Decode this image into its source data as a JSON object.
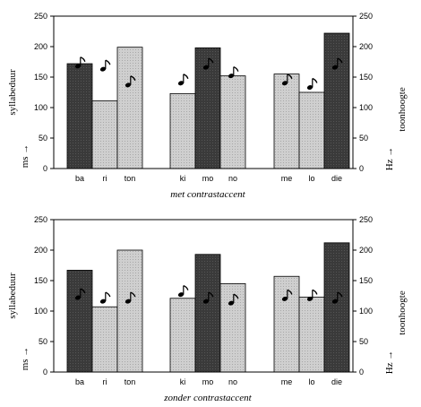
{
  "chart_data": [
    {
      "type": "bar",
      "title": "met contrastaccent",
      "categories": [
        "ba",
        "ri",
        "ton",
        "ki",
        "mo",
        "no",
        "me",
        "lo",
        "die"
      ],
      "groups": [
        [
          "ba",
          "ri",
          "ton"
        ],
        [
          "ki",
          "mo",
          "no"
        ],
        [
          "me",
          "lo",
          "die"
        ]
      ],
      "values": [
        172,
        111,
        199,
        123,
        198,
        152,
        155,
        125,
        222
      ],
      "shade": [
        "dark",
        "light",
        "light",
        "light",
        "dark",
        "light",
        "light",
        "light",
        "dark"
      ],
      "pitch": [
        168,
        163,
        137,
        140,
        166,
        152,
        140,
        133,
        166
      ],
      "ylabel_left": "syllabeduur",
      "yunit_left": "ms →",
      "ylabel_right": "toonhoogte",
      "yunit_right": "Hz →",
      "ylim": [
        0,
        250
      ],
      "yticks": [
        0,
        50,
        100,
        150,
        200,
        250
      ]
    },
    {
      "type": "bar",
      "title": "zonder contrastaccent",
      "categories": [
        "ba",
        "ri",
        "ton",
        "ki",
        "mo",
        "no",
        "me",
        "lo",
        "die"
      ],
      "groups": [
        [
          "ba",
          "ri",
          "ton"
        ],
        [
          "ki",
          "mo",
          "no"
        ],
        [
          "me",
          "lo",
          "die"
        ]
      ],
      "values": [
        167,
        107,
        200,
        121,
        193,
        145,
        157,
        123,
        212
      ],
      "shade": [
        "dark",
        "light",
        "light",
        "light",
        "dark",
        "light",
        "light",
        "light",
        "dark"
      ],
      "pitch": [
        122,
        116,
        116,
        127,
        116,
        113,
        120,
        120,
        116
      ],
      "ylabel_left": "syllabeduur",
      "yunit_left": "ms →",
      "ylabel_right": "toonhoogte",
      "yunit_right": "Hz →",
      "ylim": [
        0,
        250
      ],
      "yticks": [
        0,
        50,
        100,
        150,
        200,
        250
      ]
    }
  ],
  "colors": {
    "dark": "#3a3a3a",
    "light": "#c8c8c8",
    "axis": "#000000"
  }
}
